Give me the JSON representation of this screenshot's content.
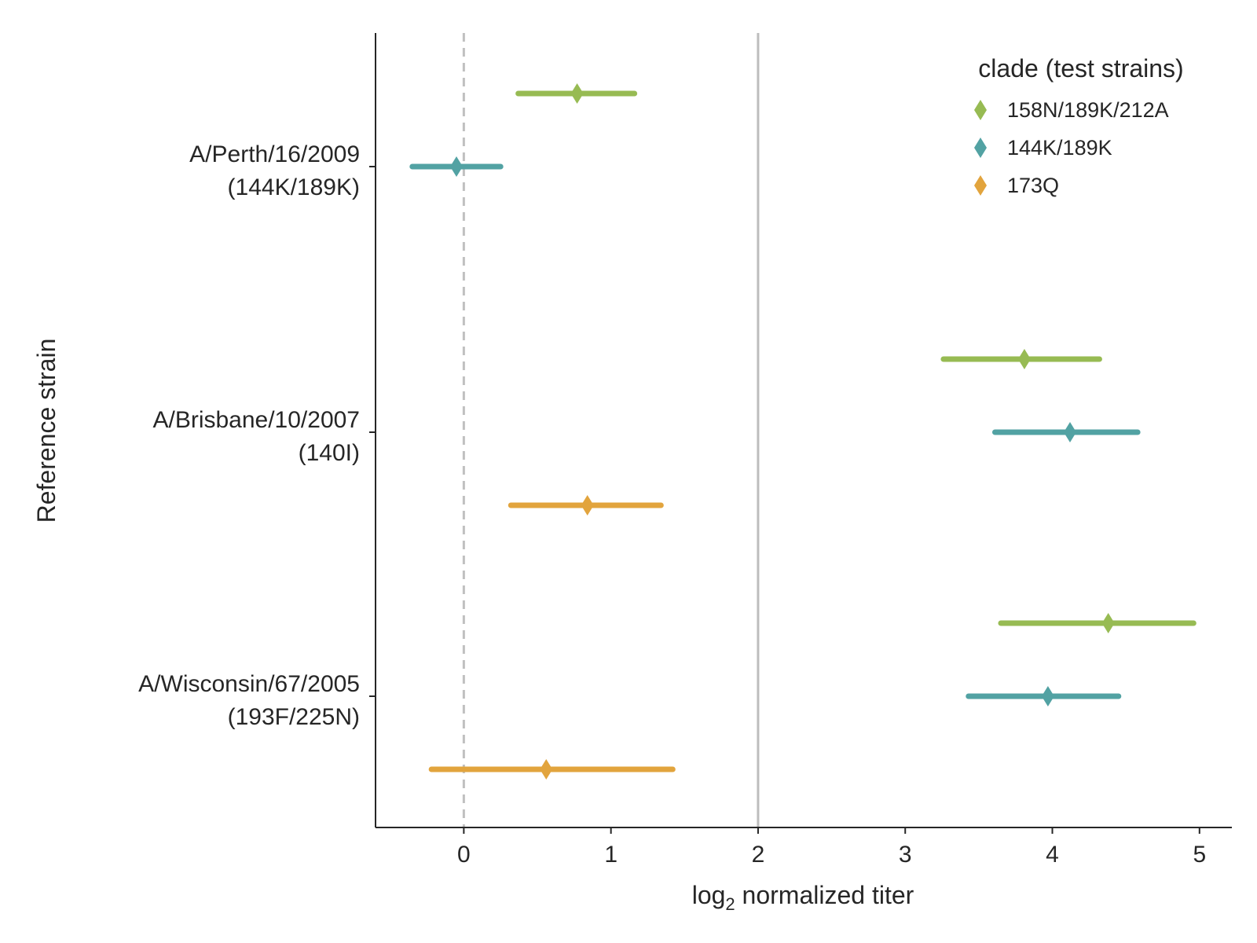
{
  "chart_data": {
    "type": "scatter",
    "title": "",
    "xlabel_parts": {
      "pre": "log",
      "sub": "2",
      "post": " normalized titer"
    },
    "ylabel": "Reference strain",
    "xlim": [
      -0.6,
      5.22
    ],
    "xticks": [
      0,
      1,
      2,
      3,
      4,
      5
    ],
    "reference_lines": [
      {
        "x": 0,
        "style": "dashed",
        "color": "#c0c0c0"
      },
      {
        "x": 2,
        "style": "solid",
        "color": "#bdbdbd"
      }
    ],
    "categories": [
      {
        "line1": "A/Perth/16/2009",
        "line2": "(144K/189K)"
      },
      {
        "line1": "A/Brisbane/10/2007",
        "line2": "(140I)"
      },
      {
        "line1": "A/Wisconsin/67/2005",
        "line2": "(193F/225N)"
      }
    ],
    "legend": {
      "title": "clade (test strains)",
      "position": "top-right"
    },
    "series": [
      {
        "name": "158N/189K/212A",
        "color": "#97bb53",
        "points": [
          {
            "category": 0,
            "x": 0.77,
            "low": 0.37,
            "high": 1.16
          },
          {
            "category": 1,
            "x": 3.81,
            "low": 3.26,
            "high": 4.32
          },
          {
            "category": 2,
            "x": 4.38,
            "low": 3.65,
            "high": 4.96
          }
        ]
      },
      {
        "name": "144K/189K",
        "color": "#52a2a3",
        "points": [
          {
            "category": 0,
            "x": -0.05,
            "low": -0.35,
            "high": 0.25
          },
          {
            "category": 1,
            "x": 4.12,
            "low": 3.61,
            "high": 4.58
          },
          {
            "category": 2,
            "x": 3.97,
            "low": 3.43,
            "high": 4.45
          }
        ]
      },
      {
        "name": "173Q",
        "color": "#e2a43d",
        "points": [
          {
            "category": 1,
            "x": 0.84,
            "low": 0.32,
            "high": 1.34
          },
          {
            "category": 2,
            "x": 0.56,
            "low": -0.22,
            "high": 1.42
          }
        ]
      }
    ]
  }
}
